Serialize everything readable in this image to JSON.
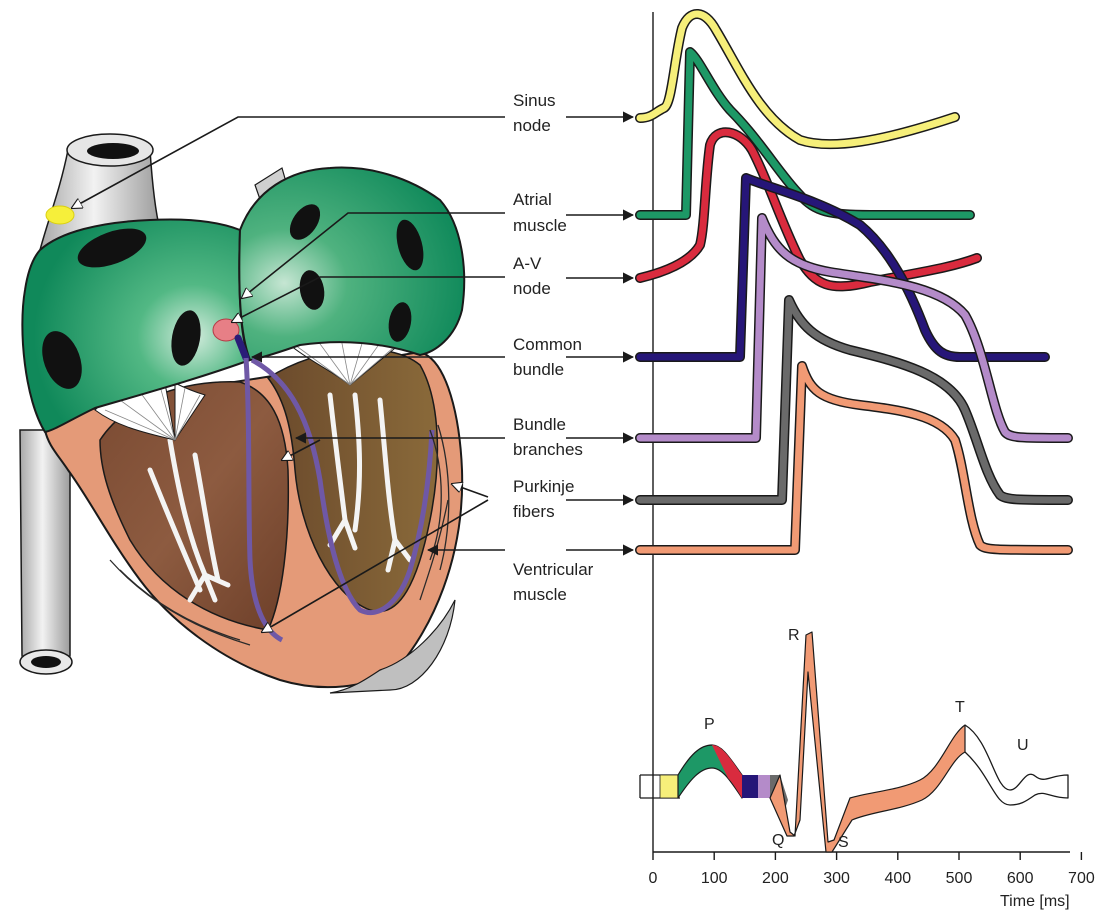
{
  "labels": [
    {
      "id": "sinus",
      "line1": "Sinus",
      "line2": "node",
      "color": "#f6ef7a"
    },
    {
      "id": "atrial",
      "line1": "Atrial",
      "line2": "muscle",
      "color": "#0f8f5e"
    },
    {
      "id": "av",
      "line1": "A-V",
      "line2": "node",
      "color": "#d8283f"
    },
    {
      "id": "common",
      "line1": "Common",
      "line2": "bundle",
      "color": "#201370"
    },
    {
      "id": "branches",
      "line1": "Bundle",
      "line2": "branches",
      "color": "#b48bc9"
    },
    {
      "id": "purkinje",
      "line1": "Purkinje",
      "line2": "fibers",
      "color": "#6c6c6c"
    },
    {
      "id": "ventricular",
      "line1": "Ventricular",
      "line2": "muscle",
      "color": "#f1916b"
    }
  ],
  "ecg": {
    "waves": [
      "P",
      "Q",
      "R",
      "S",
      "T",
      "U"
    ]
  },
  "axis": {
    "ticks": [
      "0",
      "100",
      "200",
      "300",
      "400",
      "500",
      "600",
      "700"
    ],
    "label": "Time [ms]"
  },
  "colors": {
    "atria": "#1f9a61",
    "ventricle": "#e59574",
    "vessel": "#d4d4d4",
    "outline": "#1a1a1a"
  }
}
